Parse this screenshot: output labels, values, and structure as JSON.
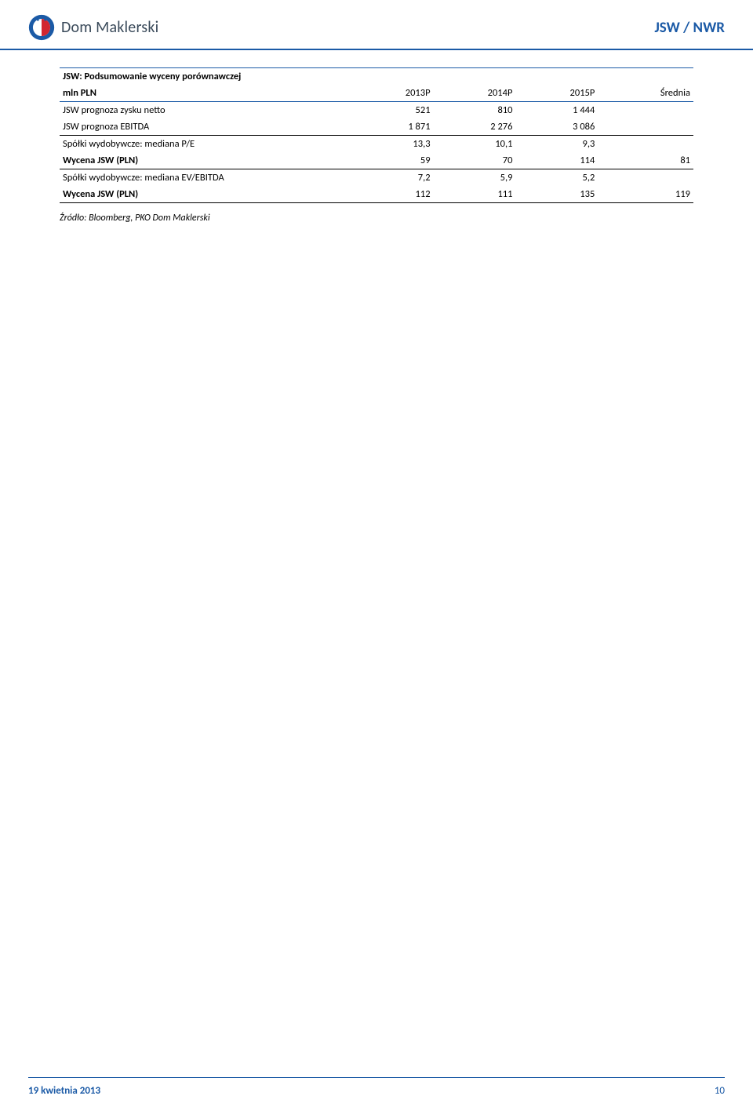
{
  "header": {
    "brand": "Dom Maklerski",
    "ticker": "JSW / NWR"
  },
  "table": {
    "title": "JSW: Podsumowanie wyceny porównawczej",
    "row_label": "mln PLN",
    "columns": [
      "2013P",
      "2014P",
      "2015P",
      "Średnia"
    ],
    "sections": [
      {
        "rows": [
          {
            "label": "JSW prognoza zysku netto",
            "cells": [
              "521",
              "810",
              "1 444",
              ""
            ]
          },
          {
            "label": "JSW prognoza EBITDA",
            "cells": [
              "1 871",
              "2 276",
              "3 086",
              ""
            ]
          }
        ]
      },
      {
        "rows": [
          {
            "label": "Spółki wydobywcze: mediana P/E",
            "cells": [
              "13,3",
              "10,1",
              "9,3",
              ""
            ]
          },
          {
            "label": "Wycena JSW (PLN)",
            "cells": [
              "59",
              "70",
              "114",
              "81"
            ],
            "bold": true
          }
        ]
      },
      {
        "rows": [
          {
            "label": "Spółki wydobywcze: mediana EV/EBITDA",
            "cells": [
              "7,2",
              "5,9",
              "5,2",
              ""
            ]
          },
          {
            "label": "Wycena JSW (PLN)",
            "cells": [
              "112",
              "111",
              "135",
              "119"
            ],
            "bold": true
          }
        ]
      }
    ],
    "source": "Źródło: Bloomberg, PKO Dom Maklerski"
  },
  "footer": {
    "date": "19 kwietnia 2013",
    "page": "10"
  },
  "colors": {
    "accent": "#1b5aa6",
    "text": "#000000",
    "brand_text": "#3a4a5a",
    "logo_red": "#d22630",
    "logo_blue": "#1b5aa6",
    "logo_white": "#ffffff"
  }
}
